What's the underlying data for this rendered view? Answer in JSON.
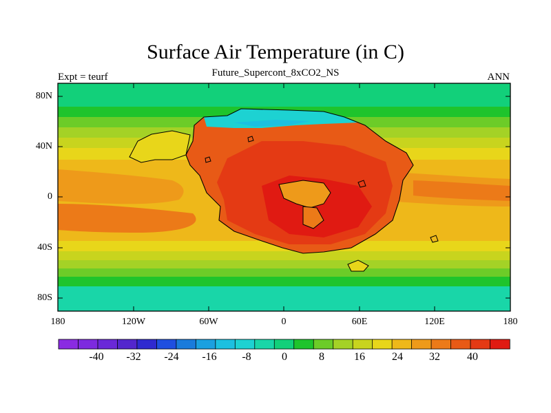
{
  "figure": {
    "title": "Surface Air Temperature (in C)",
    "subtitle": "Future_Supercont_8xCO2_NS",
    "left_note": "Expt = teurf",
    "right_note": "ANN"
  },
  "map": {
    "lat_ticks": [
      {
        "value": 80,
        "label": "80N"
      },
      {
        "value": 40,
        "label": "40N"
      },
      {
        "value": 0,
        "label": "0"
      },
      {
        "value": -40,
        "label": "40S"
      },
      {
        "value": -80,
        "label": "80S"
      }
    ],
    "lon_ticks": [
      {
        "value": -180,
        "label": "180"
      },
      {
        "value": -120,
        "label": "120W"
      },
      {
        "value": -60,
        "label": "60W"
      },
      {
        "value": 0,
        "label": "0"
      },
      {
        "value": 60,
        "label": "60E"
      },
      {
        "value": 120,
        "label": "120E"
      },
      {
        "value": 180,
        "label": "180"
      }
    ]
  },
  "colorbar": {
    "colors": [
      "#8a2be2",
      "#7d2adf",
      "#6a28d8",
      "#5326cd",
      "#2f2ad0",
      "#1f4fe0",
      "#1a7bdc",
      "#1ba0e0",
      "#1cc0e0",
      "#1dd2d2",
      "#19d6a8",
      "#12d07a",
      "#1ec42c",
      "#6ccc28",
      "#a4d226",
      "#c8d41e",
      "#e8d61a",
      "#eeb81a",
      "#ee9a1a",
      "#ec7a18",
      "#e85a16",
      "#e43a14",
      "#e01a12"
    ],
    "labels": [
      {
        "value": -40,
        "label": "-40"
      },
      {
        "value": -32,
        "label": "-32"
      },
      {
        "value": -24,
        "label": "-24"
      },
      {
        "value": -16,
        "label": "-16"
      },
      {
        "value": -8,
        "label": "-8"
      },
      {
        "value": 0,
        "label": "0"
      },
      {
        "value": 8,
        "label": "8"
      },
      {
        "value": 16,
        "label": "16"
      },
      {
        "value": 24,
        "label": "24"
      },
      {
        "value": 32,
        "label": "32"
      },
      {
        "value": 40,
        "label": "40"
      }
    ]
  }
}
